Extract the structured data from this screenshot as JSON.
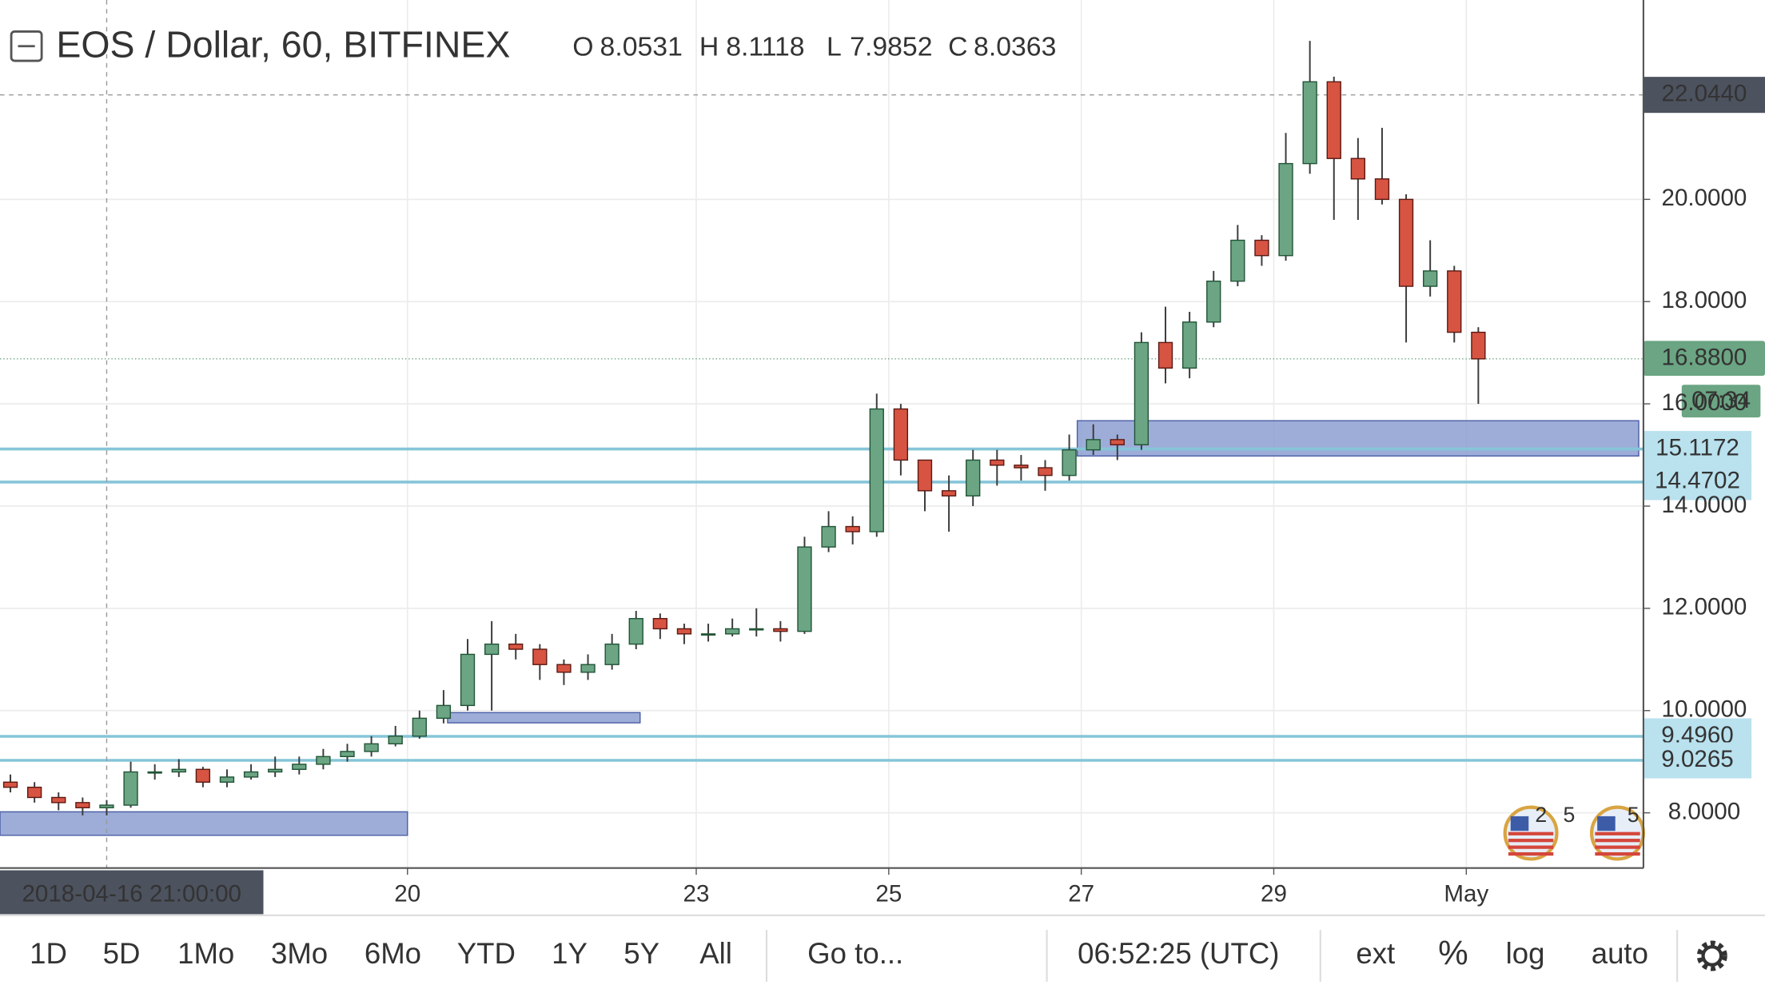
{
  "chart_data": {
    "type": "candlestick",
    "title": "EOS / Dollar, 60, BITFINEX",
    "ohlc": [
      {
        "label": "O",
        "value": "8.0531"
      },
      {
        "label": "H",
        "value": "8.1118"
      },
      {
        "label": "L",
        "value": "7.9852"
      },
      {
        "label": "C",
        "value": "8.0363"
      }
    ],
    "x": [
      "2018-04-15T21:00",
      "2018-04-16T03:00",
      "2018-04-16T09:00",
      "2018-04-16T15:00",
      "2018-04-16T21:00",
      "2018-04-17T03:00",
      "2018-04-17T09:00",
      "2018-04-17T15:00",
      "2018-04-17T21:00",
      "2018-04-18T03:00",
      "2018-04-18T09:00",
      "2018-04-18T15:00",
      "2018-04-18T21:00",
      "2018-04-19T03:00",
      "2018-04-19T09:00",
      "2018-04-19T15:00",
      "2018-04-19T21:00",
      "2018-04-20T03:00",
      "2018-04-20T09:00",
      "2018-04-20T15:00",
      "2018-04-20T21:00",
      "2018-04-21T03:00",
      "2018-04-21T09:00",
      "2018-04-21T15:00",
      "2018-04-21T21:00",
      "2018-04-22T03:00",
      "2018-04-22T09:00",
      "2018-04-22T15:00",
      "2018-04-22T21:00",
      "2018-04-23T03:00",
      "2018-04-23T09:00",
      "2018-04-23T15:00",
      "2018-04-23T21:00",
      "2018-04-24T03:00",
      "2018-04-24T09:00",
      "2018-04-24T15:00",
      "2018-04-24T21:00",
      "2018-04-25T03:00",
      "2018-04-25T09:00",
      "2018-04-25T15:00",
      "2018-04-25T21:00",
      "2018-04-26T03:00",
      "2018-04-26T09:00",
      "2018-04-26T15:00",
      "2018-04-26T21:00",
      "2018-04-27T03:00",
      "2018-04-27T09:00",
      "2018-04-27T15:00",
      "2018-04-27T21:00",
      "2018-04-28T03:00",
      "2018-04-28T09:00",
      "2018-04-28T15:00",
      "2018-04-28T21:00",
      "2018-04-29T03:00",
      "2018-04-29T09:00",
      "2018-04-29T15:00",
      "2018-04-29T21:00",
      "2018-04-30T03:00",
      "2018-04-30T09:00",
      "2018-04-30T15:00",
      "2018-04-30T21:00",
      "2018-05-01T03:00"
    ],
    "open": [
      8.6,
      8.5,
      8.3,
      8.2,
      8.1,
      8.15,
      8.8,
      8.8,
      8.85,
      8.6,
      8.7,
      8.8,
      8.85,
      8.95,
      9.1,
      9.2,
      9.35,
      9.5,
      9.85,
      10.1,
      11.1,
      11.3,
      11.2,
      10.9,
      10.75,
      10.9,
      11.3,
      11.8,
      11.6,
      11.5,
      11.5,
      11.6,
      11.6,
      11.55,
      13.2,
      13.6,
      13.5,
      15.9,
      14.9,
      14.3,
      14.2,
      14.9,
      14.8,
      14.75,
      14.6,
      15.1,
      15.3,
      15.2,
      17.2,
      16.7,
      17.6,
      18.4,
      19.2,
      18.9,
      20.7,
      22.3,
      20.8,
      20.4,
      20.0,
      18.3,
      18.6,
      17.4
    ],
    "high": [
      8.75,
      8.6,
      8.4,
      8.3,
      8.25,
      9.0,
      8.95,
      9.05,
      8.9,
      8.85,
      8.95,
      9.1,
      9.1,
      9.25,
      9.35,
      9.5,
      9.7,
      10.0,
      10.4,
      11.4,
      11.75,
      11.5,
      11.3,
      11.0,
      11.1,
      11.5,
      11.95,
      11.9,
      11.7,
      11.7,
      11.8,
      12.0,
      11.75,
      13.4,
      13.9,
      13.8,
      16.2,
      16.0,
      14.9,
      14.6,
      15.1,
      15.1,
      15.0,
      14.9,
      15.4,
      15.6,
      15.4,
      17.4,
      17.9,
      17.8,
      18.6,
      19.5,
      19.3,
      21.3,
      23.1,
      22.4,
      21.2,
      21.4,
      20.1,
      19.2,
      18.7,
      17.5
    ],
    "low": [
      8.4,
      8.2,
      8.05,
      7.95,
      7.95,
      8.1,
      8.65,
      8.7,
      8.5,
      8.5,
      8.65,
      8.7,
      8.75,
      8.85,
      9.0,
      9.1,
      9.3,
      9.45,
      9.75,
      10.0,
      10.0,
      11.0,
      10.6,
      10.5,
      10.6,
      10.8,
      11.2,
      11.4,
      11.3,
      11.35,
      11.45,
      11.45,
      11.35,
      11.5,
      13.1,
      13.25,
      13.4,
      14.6,
      13.9,
      13.5,
      14.0,
      14.4,
      14.5,
      14.3,
      14.5,
      15.0,
      14.9,
      15.1,
      16.4,
      16.5,
      17.5,
      18.3,
      18.7,
      18.8,
      20.5,
      19.6,
      19.6,
      19.9,
      17.2,
      18.1,
      17.2,
      16.0
    ],
    "close": [
      8.5,
      8.3,
      8.2,
      8.1,
      8.15,
      8.8,
      8.8,
      8.85,
      8.6,
      8.7,
      8.8,
      8.85,
      8.95,
      9.1,
      9.2,
      9.35,
      9.5,
      9.85,
      10.1,
      11.1,
      11.3,
      11.2,
      10.9,
      10.75,
      10.9,
      11.3,
      11.8,
      11.6,
      11.5,
      11.5,
      11.6,
      11.6,
      11.55,
      13.2,
      13.6,
      13.5,
      15.9,
      14.9,
      14.3,
      14.2,
      14.9,
      14.8,
      14.75,
      14.6,
      15.1,
      15.3,
      15.2,
      17.2,
      16.7,
      17.6,
      18.4,
      19.2,
      18.9,
      20.7,
      22.3,
      20.8,
      20.4,
      20.0,
      18.3,
      18.6,
      17.4,
      16.88
    ],
    "up_color": "#6ba583",
    "down_color": "#d75442",
    "wick_color": "#3b3b3b",
    "xlim": [
      "2018-04-15T18:24",
      "2018-05-02T20:10"
    ],
    "xticks": [
      {
        "value": "2018-04-20T00:00",
        "label": "20"
      },
      {
        "value": "2018-04-23T00:00",
        "label": "23"
      },
      {
        "value": "2018-04-25T00:00",
        "label": "25"
      },
      {
        "value": "2018-04-27T00:00",
        "label": "27"
      },
      {
        "value": "2018-04-29T00:00",
        "label": "29"
      },
      {
        "value": "2018-05-01T00:00",
        "label": "May"
      }
    ],
    "ylim": [
      6.92,
      23.9
    ],
    "yticks": [
      {
        "value": 8,
        "label": "8.0000"
      },
      {
        "value": 10,
        "label": "10.0000"
      },
      {
        "value": 12,
        "label": "12.0000"
      },
      {
        "value": 14,
        "label": "14.0000"
      },
      {
        "value": 16,
        "label": "16.0000"
      },
      {
        "value": 18,
        "label": "18.0000"
      },
      {
        "value": 20,
        "label": "20.0000"
      }
    ],
    "grid": true,
    "levels": [
      15.1172,
      14.4702,
      9.496,
      9.0265
    ],
    "level_labels": [
      "15.1172",
      "14.4702",
      "9.4960",
      "9.0265"
    ],
    "level_color": "#86c5d8",
    "zones": [
      {
        "x": [
          "2018-04-26T23:00",
          "2018-05-02T19:00"
        ],
        "y": [
          15.67,
          14.98
        ]
      },
      {
        "x": [
          "2018-04-20T10:00",
          "2018-04-22T10:00"
        ],
        "y": [
          9.96,
          9.76
        ]
      },
      {
        "x": [
          "2018-04-15T18:24",
          "2018-04-20T00:00"
        ],
        "y": [
          8.02,
          7.56
        ]
      }
    ],
    "zone_color": "#8c9fd1",
    "last_price": 16.88,
    "last_price_label": "16.8800",
    "countdown": "07:34",
    "crosshair": {
      "x": "2018-04-16T21:00",
      "x_label": "2018-04-16 21:00:00",
      "y": 22.044,
      "y_label": "22.0440"
    },
    "events": [
      "2",
      "5",
      "5"
    ],
    "log_scale": false
  },
  "toolbar": {
    "ranges": [
      "1D",
      "5D",
      "1Mo",
      "3Mo",
      "6Mo",
      "YTD",
      "1Y",
      "5Y",
      "All"
    ],
    "goto": "Go to...",
    "clock": "06:52:25 (UTC)",
    "options": [
      "ext",
      "%",
      "log",
      "auto"
    ]
  }
}
